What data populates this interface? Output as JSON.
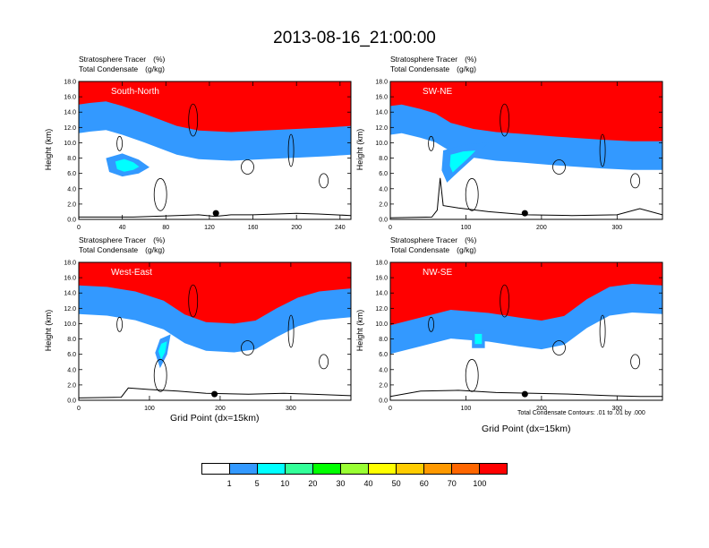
{
  "title": "2013-08-16_21:00:00",
  "subtitle_line1": "Stratosphere Tracer",
  "subtitle_unit1": "(%)",
  "subtitle_line2": "Total Condensate",
  "subtitle_unit2": "(g/kg)",
  "ylabel": "Height (km)",
  "xlabel": "Grid Point (dx=15km)",
  "contour_note": "Total Condensate Contours: .01 to .01 by .000",
  "colorbar": {
    "colors": [
      "#ffffff",
      "#3399ff",
      "#00ffff",
      "#33ff99",
      "#00ff00",
      "#99ff33",
      "#ffff00",
      "#ffcc00",
      "#ff9900",
      "#ff6600",
      "#ff0000"
    ],
    "labels": [
      "1",
      "5",
      "10",
      "20",
      "30",
      "40",
      "50",
      "60",
      "70",
      "100"
    ]
  },
  "chart_data": [
    {
      "type": "heatmap",
      "panel_label": "South-North",
      "xlim": [
        0,
        250
      ],
      "xticks": [
        "0",
        "40",
        "80",
        "120",
        "160",
        "200",
        "240"
      ],
      "xtick_values": [
        0,
        40,
        80,
        120,
        160,
        200,
        240
      ],
      "ylim": [
        0,
        18
      ],
      "yticks": [
        "0.0",
        "2.0",
        "4.0",
        "6.0",
        "8.0",
        "10.0",
        "12.0",
        "14.0",
        "16.0",
        "18.0"
      ],
      "tracer_top_profile": [
        [
          0,
          14.4
        ],
        [
          10,
          14.6
        ],
        [
          25,
          14.8
        ],
        [
          40,
          14.2
        ],
        [
          60,
          13.2
        ],
        [
          75,
          12.4
        ],
        [
          90,
          11.6
        ],
        [
          110,
          11.0
        ],
        [
          140,
          10.8
        ],
        [
          170,
          11.0
        ],
        [
          200,
          11.2
        ],
        [
          230,
          11.4
        ],
        [
          250,
          11.6
        ]
      ],
      "blue_blob": [
        [
          25,
          8.0
        ],
        [
          40,
          8.6
        ],
        [
          55,
          7.8
        ],
        [
          65,
          6.8
        ],
        [
          55,
          6.0
        ],
        [
          40,
          5.6
        ],
        [
          28,
          6.2
        ]
      ],
      "marker": [
        126,
        0.8
      ],
      "terrain": [
        [
          0,
          0.3
        ],
        [
          50,
          0.3
        ],
        [
          90,
          0.5
        ],
        [
          110,
          0.6
        ],
        [
          125,
          0.4
        ],
        [
          140,
          0.6
        ],
        [
          160,
          0.6
        ],
        [
          200,
          0.8
        ],
        [
          220,
          0.7
        ],
        [
          250,
          0.5
        ]
      ]
    },
    {
      "type": "heatmap",
      "panel_label": "SW-NE",
      "xlim": [
        0,
        360
      ],
      "xticks": [
        "0",
        "100",
        "200",
        "300"
      ],
      "xtick_values": [
        0,
        100,
        200,
        300
      ],
      "ylim": [
        0,
        18
      ],
      "yticks": [
        "0.0",
        "2.0",
        "4.0",
        "6.0",
        "8.0",
        "10.0",
        "12.0",
        "14.0",
        "16.0",
        "18.0"
      ],
      "tracer_top_profile": [
        [
          0,
          14.2
        ],
        [
          15,
          14.4
        ],
        [
          40,
          13.8
        ],
        [
          60,
          13.2
        ],
        [
          80,
          12.0
        ],
        [
          110,
          11.2
        ],
        [
          140,
          10.8
        ],
        [
          170,
          10.6
        ],
        [
          220,
          10.2
        ],
        [
          280,
          9.8
        ],
        [
          320,
          9.6
        ],
        [
          360,
          9.6
        ]
      ],
      "blue_blob": [
        [
          70,
          9.0
        ],
        [
          100,
          9.8
        ],
        [
          130,
          10.0
        ],
        [
          110,
          8.0
        ],
        [
          90,
          6.2
        ],
        [
          75,
          4.8
        ],
        [
          68,
          6.4
        ]
      ],
      "marker": [
        178,
        0.8
      ],
      "terrain": [
        [
          0,
          0.2
        ],
        [
          55,
          0.3
        ],
        [
          62,
          1.2
        ],
        [
          66,
          5.4
        ],
        [
          70,
          1.8
        ],
        [
          90,
          1.5
        ],
        [
          130,
          1.0
        ],
        [
          180,
          0.6
        ],
        [
          240,
          0.5
        ],
        [
          300,
          0.6
        ],
        [
          330,
          1.4
        ],
        [
          360,
          0.6
        ]
      ]
    },
    {
      "type": "heatmap",
      "panel_label": "West-East",
      "xlim": [
        0,
        385
      ],
      "xticks": [
        "0",
        "100",
        "200",
        "300"
      ],
      "xtick_values": [
        0,
        100,
        200,
        300
      ],
      "ylim": [
        0,
        18
      ],
      "yticks": [
        "0.0",
        "2.0",
        "4.0",
        "6.0",
        "8.0",
        "10.0",
        "12.0",
        "14.0",
        "16.0",
        "18.0"
      ],
      "tracer_top_profile": [
        [
          0,
          14.4
        ],
        [
          40,
          14.2
        ],
        [
          80,
          13.6
        ],
        [
          120,
          12.4
        ],
        [
          150,
          10.6
        ],
        [
          180,
          9.6
        ],
        [
          220,
          9.4
        ],
        [
          250,
          9.8
        ],
        [
          280,
          11.4
        ],
        [
          310,
          12.8
        ],
        [
          340,
          13.6
        ],
        [
          385,
          14.0
        ]
      ],
      "blue_blob": [
        [
          115,
          8.0
        ],
        [
          130,
          8.6
        ],
        [
          125,
          6.0
        ],
        [
          115,
          4.2
        ],
        [
          108,
          6.2
        ]
      ],
      "marker": [
        192,
        0.8
      ],
      "terrain": [
        [
          0,
          0.3
        ],
        [
          60,
          0.4
        ],
        [
          70,
          1.6
        ],
        [
          100,
          1.4
        ],
        [
          140,
          1.2
        ],
        [
          180,
          0.9
        ],
        [
          240,
          0.8
        ],
        [
          290,
          0.9
        ],
        [
          330,
          0.8
        ],
        [
          385,
          0.6
        ]
      ]
    },
    {
      "type": "heatmap",
      "panel_label": "NW-SE",
      "xlim": [
        0,
        360
      ],
      "xticks": [
        "0",
        "100",
        "200",
        "300"
      ],
      "xtick_values": [
        0,
        100,
        200,
        300
      ],
      "ylim": [
        0,
        18
      ],
      "yticks": [
        "0.0",
        "2.0",
        "4.0",
        "6.0",
        "8.0",
        "10.0",
        "12.0",
        "14.0",
        "16.0",
        "18.0"
      ],
      "tracer_top_profile": [
        [
          0,
          9.2
        ],
        [
          40,
          10.2
        ],
        [
          80,
          11.2
        ],
        [
          130,
          10.8
        ],
        [
          170,
          10.2
        ],
        [
          200,
          9.8
        ],
        [
          230,
          10.4
        ],
        [
          260,
          12.6
        ],
        [
          290,
          14.2
        ],
        [
          320,
          14.6
        ],
        [
          360,
          14.4
        ]
      ],
      "blue_blob": [
        [
          108,
          9.2
        ],
        [
          125,
          9.2
        ],
        [
          125,
          6.8
        ],
        [
          108,
          6.8
        ]
      ],
      "marker": [
        178,
        0.8
      ],
      "terrain": [
        [
          0,
          0.5
        ],
        [
          40,
          1.2
        ],
        [
          90,
          1.3
        ],
        [
          140,
          1.0
        ],
        [
          190,
          0.9
        ],
        [
          240,
          0.8
        ],
        [
          290,
          0.6
        ],
        [
          330,
          0.5
        ],
        [
          360,
          0.5
        ]
      ]
    }
  ]
}
